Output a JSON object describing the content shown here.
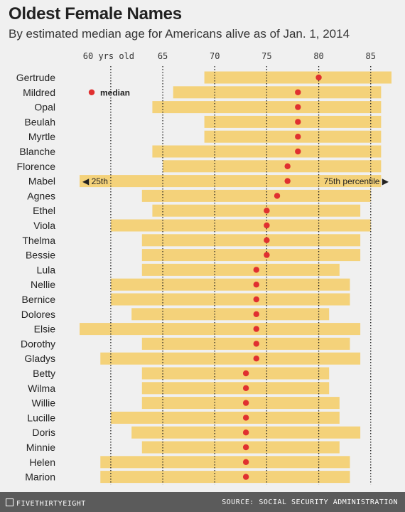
{
  "title": "Oldest Female Names",
  "subtitle": "By estimated median age for Americans alive as of Jan. 1, 2014",
  "footer": {
    "brand": "FIVETHIRTYEIGHT",
    "source": "SOURCE: SOCIAL SECURITY ADMINISTRATION"
  },
  "colors": {
    "bar": "#f4d27a",
    "dot": "#e03030",
    "grid": "#222222",
    "background": "#f0f0f0"
  },
  "chart_data": {
    "type": "bar",
    "orientation": "horizontal-range",
    "xlim": [
      57,
      87
    ],
    "grid": true,
    "ticks": [
      {
        "value": 60,
        "label": "60 yrs old"
      },
      {
        "value": 65,
        "label": "65"
      },
      {
        "value": 70,
        "label": "70"
      },
      {
        "value": 75,
        "label": "75"
      },
      {
        "value": 80,
        "label": "80"
      },
      {
        "value": 85,
        "label": "85"
      }
    ],
    "annotations": {
      "median_label": "median",
      "p25_label": "◀ 25th",
      "p75_label": "75th percentile ▶"
    },
    "series": [
      {
        "name": "Gertrude",
        "p25": 69,
        "median": 80,
        "p75": 87
      },
      {
        "name": "Mildred",
        "p25": 66,
        "median": 78,
        "p75": 86
      },
      {
        "name": "Opal",
        "p25": 64,
        "median": 78,
        "p75": 86
      },
      {
        "name": "Beulah",
        "p25": 69,
        "median": 78,
        "p75": 86
      },
      {
        "name": "Myrtle",
        "p25": 69,
        "median": 78,
        "p75": 86
      },
      {
        "name": "Blanche",
        "p25": 64,
        "median": 78,
        "p75": 86
      },
      {
        "name": "Florence",
        "p25": 65,
        "median": 77,
        "p75": 86
      },
      {
        "name": "Mabel",
        "p25": 57,
        "median": 77,
        "p75": 86
      },
      {
        "name": "Agnes",
        "p25": 63,
        "median": 76,
        "p75": 85
      },
      {
        "name": "Ethel",
        "p25": 64,
        "median": 75,
        "p75": 84
      },
      {
        "name": "Viola",
        "p25": 60,
        "median": 75,
        "p75": 85
      },
      {
        "name": "Thelma",
        "p25": 63,
        "median": 75,
        "p75": 84
      },
      {
        "name": "Bessie",
        "p25": 63,
        "median": 75,
        "p75": 84
      },
      {
        "name": "Lula",
        "p25": 63,
        "median": 74,
        "p75": 82
      },
      {
        "name": "Nellie",
        "p25": 60,
        "median": 74,
        "p75": 83
      },
      {
        "name": "Bernice",
        "p25": 60,
        "median": 74,
        "p75": 83
      },
      {
        "name": "Dolores",
        "p25": 62,
        "median": 74,
        "p75": 81
      },
      {
        "name": "Elsie",
        "p25": 57,
        "median": 74,
        "p75": 84
      },
      {
        "name": "Dorothy",
        "p25": 63,
        "median": 74,
        "p75": 83
      },
      {
        "name": "Gladys",
        "p25": 59,
        "median": 74,
        "p75": 84
      },
      {
        "name": "Betty",
        "p25": 63,
        "median": 73,
        "p75": 81
      },
      {
        "name": "Wilma",
        "p25": 63,
        "median": 73,
        "p75": 81
      },
      {
        "name": "Willie",
        "p25": 63,
        "median": 73,
        "p75": 82
      },
      {
        "name": "Lucille",
        "p25": 60,
        "median": 73,
        "p75": 82
      },
      {
        "name": "Doris",
        "p25": 62,
        "median": 73,
        "p75": 84
      },
      {
        "name": "Minnie",
        "p25": 63,
        "median": 73,
        "p75": 82
      },
      {
        "name": "Helen",
        "p25": 59,
        "median": 73,
        "p75": 83
      },
      {
        "name": "Marion",
        "p25": 59,
        "median": 73,
        "p75": 83
      }
    ]
  }
}
